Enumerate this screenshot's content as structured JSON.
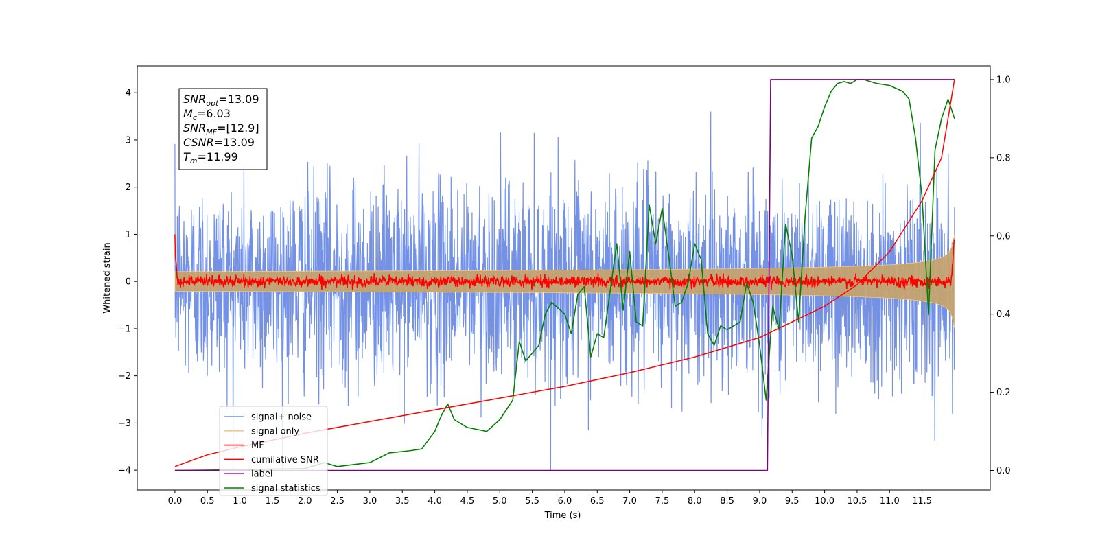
{
  "chart_data": {
    "type": "line",
    "title": "",
    "xlabel": "Time (s)",
    "ylabel": "Whitened strain",
    "xlim": [
      -0.58,
      12.55
    ],
    "ylim": [
      -4.42,
      4.57
    ],
    "y2lim": [
      -0.05,
      1.035
    ],
    "x_ticks": [
      "0.0",
      "0.5",
      "1.0",
      "1.5",
      "2.0",
      "2.5",
      "3.0",
      "3.5",
      "4.0",
      "4.5",
      "5.0",
      "5.5",
      "6.0",
      "6.5",
      "7.0",
      "7.5",
      "8.0",
      "8.5",
      "9.0",
      "9.5",
      "10.0",
      "10.5",
      "11.0",
      "11.5"
    ],
    "y_ticks": [
      "4",
      "3",
      "2",
      "1",
      "0",
      "−1",
      "−2",
      "−3",
      "−4"
    ],
    "y2_ticks": [
      "1.0",
      "0.8",
      "0.6",
      "0.4",
      "0.2",
      "0.0"
    ],
    "grid": false,
    "legend_position": "lower-left",
    "info_box": {
      "snr_opt": "=13.09",
      "mc": "=6.03",
      "snr_mf": "=[12.9]",
      "csnr": "=13.09",
      "tm": "=11.99"
    },
    "series": [
      {
        "name": "signal+ noise",
        "color": "#7391e6",
        "kind": "noise",
        "amplitude": 1.05,
        "t_start": 0.0,
        "t_end": 12.0
      },
      {
        "name": "signal only",
        "color": "#f5c97a",
        "kind": "chirp_envelope",
        "t_coalescence": 12.0,
        "amplitude_end": 1.0
      },
      {
        "name": "MF",
        "color": "#ff0000",
        "kind": "noise",
        "amplitude": 0.06,
        "initial_peak": 1.0
      },
      {
        "name": "cumilative SNR",
        "color": "#ff0000",
        "axis": "right",
        "x": [
          0.0,
          0.5,
          1.0,
          2.0,
          3.0,
          4.0,
          5.0,
          6.0,
          7.0,
          8.0,
          9.0,
          10.0,
          10.5,
          11.0,
          11.5,
          11.8,
          12.0
        ],
        "values": [
          0.01,
          0.04,
          0.06,
          0.095,
          0.125,
          0.155,
          0.185,
          0.215,
          0.25,
          0.29,
          0.34,
          0.42,
          0.475,
          0.56,
          0.69,
          0.8,
          1.0
        ]
      },
      {
        "name": "label",
        "color": "#800080",
        "axis": "right",
        "x": [
          0.0,
          9.12,
          9.17,
          12.0
        ],
        "values": [
          0.0,
          0.0,
          1.0,
          1.0
        ]
      },
      {
        "name": "signal statistics",
        "color": "#008000",
        "axis": "right",
        "x": [
          0.0,
          1.0,
          2.0,
          2.3,
          2.5,
          3.0,
          3.3,
          3.6,
          3.8,
          4.0,
          4.1,
          4.2,
          4.3,
          4.5,
          4.8,
          5.0,
          5.2,
          5.3,
          5.4,
          5.6,
          5.7,
          5.8,
          6.0,
          6.1,
          6.2,
          6.3,
          6.4,
          6.5,
          6.6,
          6.8,
          6.9,
          7.0,
          7.1,
          7.2,
          7.3,
          7.4,
          7.5,
          7.6,
          7.7,
          7.8,
          7.9,
          8.0,
          8.1,
          8.2,
          8.3,
          8.4,
          8.5,
          8.6,
          8.7,
          8.8,
          8.9,
          9.0,
          9.1,
          9.2,
          9.3,
          9.4,
          9.5,
          9.6,
          9.7,
          9.8,
          9.9,
          10.0,
          10.1,
          10.2,
          10.3,
          10.4,
          10.5,
          10.6,
          10.8,
          11.0,
          11.2,
          11.3,
          11.4,
          11.5,
          11.6,
          11.7,
          11.8,
          11.9,
          12.0
        ],
        "values": [
          0.0,
          0.002,
          0.005,
          0.02,
          0.01,
          0.02,
          0.045,
          0.05,
          0.055,
          0.1,
          0.14,
          0.17,
          0.13,
          0.11,
          0.1,
          0.13,
          0.18,
          0.33,
          0.28,
          0.32,
          0.4,
          0.43,
          0.4,
          0.35,
          0.45,
          0.47,
          0.29,
          0.35,
          0.34,
          0.58,
          0.41,
          0.56,
          0.38,
          0.37,
          0.68,
          0.58,
          0.67,
          0.55,
          0.42,
          0.43,
          0.48,
          0.58,
          0.54,
          0.35,
          0.32,
          0.37,
          0.36,
          0.37,
          0.38,
          0.48,
          0.43,
          0.32,
          0.18,
          0.42,
          0.36,
          0.63,
          0.55,
          0.38,
          0.65,
          0.85,
          0.88,
          0.93,
          0.97,
          0.99,
          0.995,
          0.99,
          1.0,
          1.0,
          0.99,
          0.985,
          0.97,
          0.95,
          0.85,
          0.7,
          0.4,
          0.82,
          0.9,
          0.95,
          0.9
        ]
      }
    ]
  }
}
